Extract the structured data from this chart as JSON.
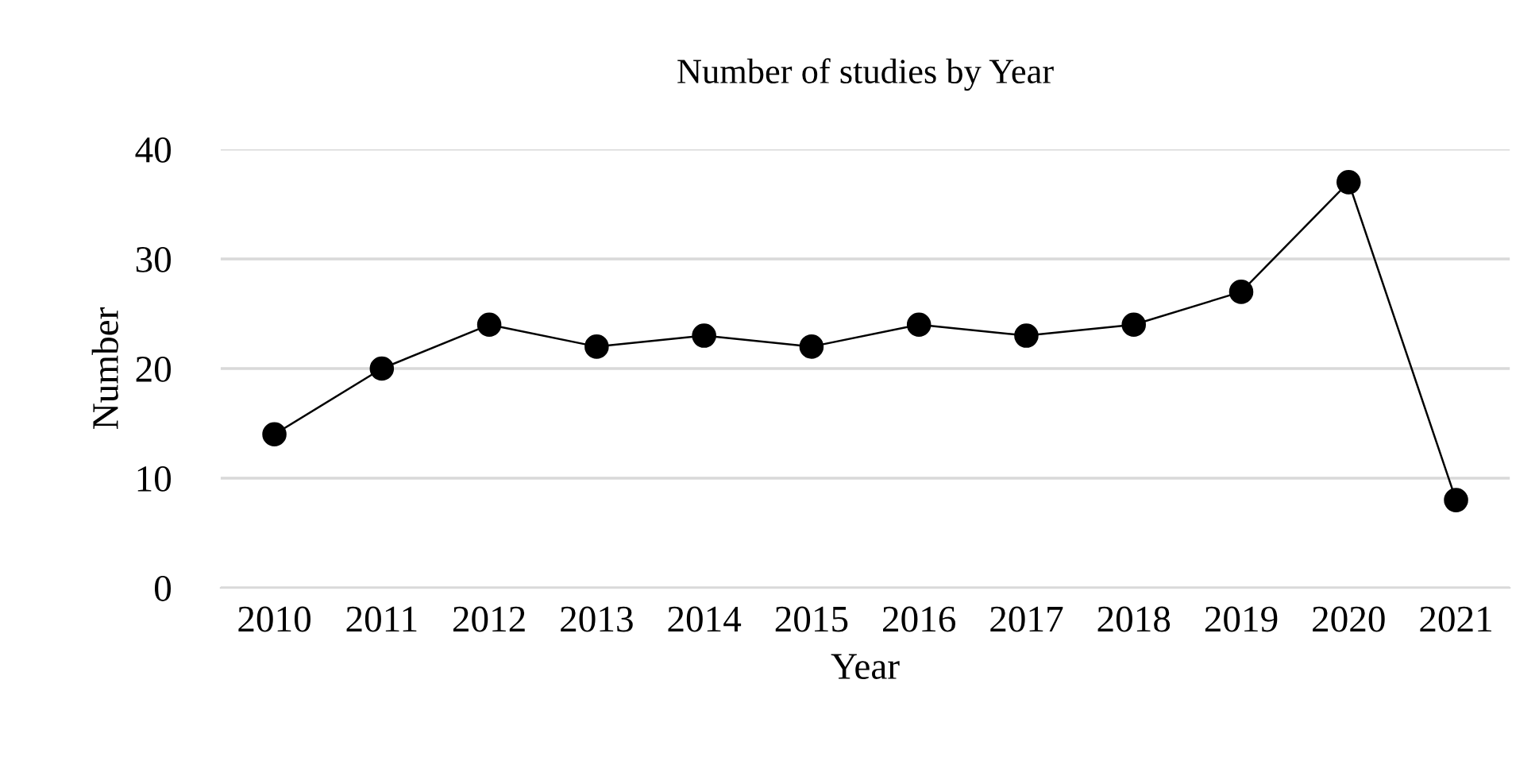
{
  "chart_data": {
    "type": "line",
    "title": "Number of studies by Year",
    "xlabel": "Year",
    "ylabel": "Number",
    "categories": [
      "2010",
      "2011",
      "2012",
      "2013",
      "2014",
      "2015",
      "2016",
      "2017",
      "2018",
      "2019",
      "2020",
      "2021"
    ],
    "series": [
      {
        "color": "#000000",
        "values": [
          14,
          20,
          24,
          22,
          23,
          22,
          24,
          23,
          24,
          27,
          37,
          8
        ]
      }
    ],
    "ylim": [
      0,
      40
    ],
    "yticks": [
      0,
      10,
      20,
      30,
      40
    ],
    "grid": "y",
    "marker": "circle",
    "line_style": "solid"
  }
}
